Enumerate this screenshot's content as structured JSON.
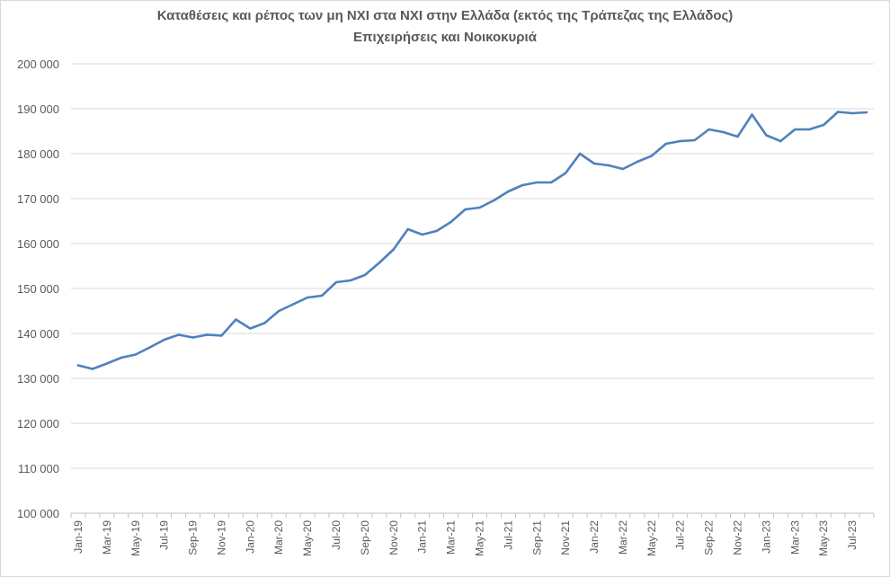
{
  "chart_data": {
    "type": "line",
    "title": "Καταθέσεις και ρέπος των μη ΝΧΙ στα ΝΧΙ στην Ελλάδα (εκτός της Τράπεζας της Ελλάδος)",
    "subtitle": "Επιχειρήσεις και Νοικοκυριά",
    "xlabel": "",
    "ylabel": "",
    "ylim": [
      100000,
      200000
    ],
    "grid": true,
    "legend": "none",
    "color": "#4f81bd",
    "y_tick_values": [
      100000,
      110000,
      120000,
      130000,
      140000,
      150000,
      160000,
      170000,
      180000,
      190000,
      200000
    ],
    "y_tick_labels": [
      "100 000",
      "110 000",
      "120 000",
      "130 000",
      "140 000",
      "150 000",
      "160 000",
      "170 000",
      "180 000",
      "190 000",
      "200 000"
    ],
    "x_tick_labels": [
      "Jan-19",
      "Mar-19",
      "May-19",
      "Jul-19",
      "Sep-19",
      "Nov-19",
      "Jan-20",
      "Mar-20",
      "May-20",
      "Jul-20",
      "Sep-20",
      "Nov-20",
      "Jan-21",
      "Mar-21",
      "May-21",
      "Jul-21",
      "Sep-21",
      "Nov-21",
      "Jan-22",
      "Mar-22",
      "May-22",
      "Jul-22",
      "Sep-22",
      "Nov-22",
      "Jan-23",
      "Mar-23",
      "May-23",
      "Jul-23"
    ],
    "x": [
      "Jan-19",
      "Feb-19",
      "Mar-19",
      "Apr-19",
      "May-19",
      "Jun-19",
      "Jul-19",
      "Aug-19",
      "Sep-19",
      "Oct-19",
      "Nov-19",
      "Dec-19",
      "Jan-20",
      "Feb-20",
      "Mar-20",
      "Apr-20",
      "May-20",
      "Jun-20",
      "Jul-20",
      "Aug-20",
      "Sep-20",
      "Oct-20",
      "Nov-20",
      "Dec-20",
      "Jan-21",
      "Feb-21",
      "Mar-21",
      "Apr-21",
      "May-21",
      "Jun-21",
      "Jul-21",
      "Aug-21",
      "Sep-21",
      "Oct-21",
      "Nov-21",
      "Dec-21",
      "Jan-22",
      "Feb-22",
      "Mar-22",
      "Apr-22",
      "May-22",
      "Jun-22",
      "Jul-22",
      "Aug-22",
      "Sep-22",
      "Oct-22",
      "Nov-22",
      "Dec-22",
      "Jan-23",
      "Feb-23",
      "Mar-23",
      "Apr-23",
      "May-23",
      "Jun-23",
      "Jul-23",
      "Aug-23"
    ],
    "series": [
      {
        "name": "Επιχειρήσεις και Νοικοκυριά",
        "values": [
          132900,
          132100,
          133300,
          134600,
          135300,
          136900,
          138600,
          139700,
          139100,
          139700,
          139500,
          143100,
          141100,
          142300,
          145000,
          146500,
          148000,
          148400,
          151400,
          151800,
          153000,
          155700,
          158700,
          163200,
          162000,
          162800,
          164800,
          167600,
          168000,
          169600,
          171600,
          173000,
          173600,
          173600,
          175700,
          180000,
          177800,
          177400,
          176600,
          178200,
          179500,
          182200,
          182800,
          183000,
          185400,
          184800,
          183800,
          188700,
          184100,
          182800,
          185400,
          185400,
          186400,
          189300,
          189000,
          189200
        ]
      }
    ]
  }
}
